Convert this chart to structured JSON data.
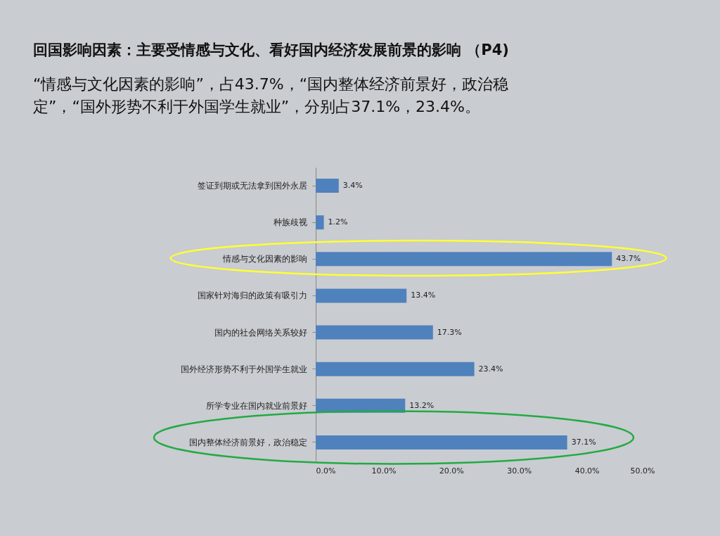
{
  "chart_data": {
    "type": "bar",
    "orientation": "horizontal",
    "title": "回国影响因素：主要受情感与文化、看好国内经济发展前景的影响 （P4)",
    "subtitle": "“情感与文化因素的影响”，占43.7%，“国内整体经济前景好，政治稳定”，“国外形势不利于外国学生就业”，分别占37.1%，23.4%。",
    "categories": [
      "签证到期或无法拿到国外永居",
      "种族歧视",
      "情感与文化因素的影响",
      "国家针对海归的政策有吸引力",
      "国内的社会网络关系较好",
      "国外经济形势不利于外国学生就业",
      "所学专业在国内就业前景好",
      "国内整体经济前景好，政治稳定"
    ],
    "values": [
      3.4,
      1.2,
      43.7,
      13.4,
      17.3,
      23.4,
      13.2,
      37.1
    ],
    "value_labels": [
      "3.4%",
      "1.2%",
      "43.7%",
      "13.4%",
      "17.3%",
      "23.4%",
      "13.2%",
      "37.1%"
    ],
    "color": "#4f81bd",
    "xlim": [
      0,
      50
    ],
    "xticks": [
      {
        "value": 0,
        "label": "0.0%"
      },
      {
        "value": 10,
        "label": "10.0%"
      },
      {
        "value": 20,
        "label": "20.0%"
      },
      {
        "value": 30,
        "label": "30.0%"
      },
      {
        "value": 40,
        "label": "40.0%"
      },
      {
        "value": 50,
        "label": "50.0%"
      }
    ],
    "grid": false
  }
}
